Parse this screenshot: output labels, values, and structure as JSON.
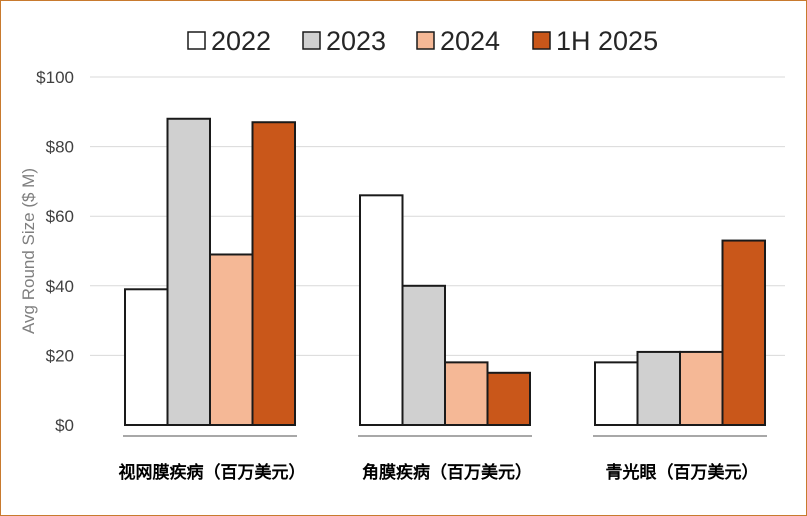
{
  "chart_data": {
    "type": "bar",
    "categories": [
      "视网膜疾病（百万美元）",
      "角膜疾病（百万美元）",
      "青光眼（百万美元）"
    ],
    "series": [
      {
        "name": "2022",
        "values": [
          39,
          66,
          18
        ],
        "color": "#ffffff"
      },
      {
        "name": "2023",
        "values": [
          88,
          40,
          21
        ],
        "color": "#d0d0d0"
      },
      {
        "name": "2024",
        "values": [
          49,
          18,
          21
        ],
        "color": "#f5b896"
      },
      {
        "name": "1H 2025",
        "values": [
          87,
          15,
          53
        ],
        "color": "#c9571a"
      }
    ],
    "ylabel": "Avg Round Size ($ M)",
    "ylim": [
      0,
      100
    ],
    "yticks": [
      0,
      20,
      40,
      60,
      80,
      100
    ],
    "ytick_labels": [
      "$0",
      "$20",
      "$40",
      "$60",
      "$80",
      "$100"
    ],
    "grid": true,
    "legend": "top"
  },
  "colors": {
    "border": "#c87a2e",
    "bar_outline": "#1a1a1a",
    "grid": "#d9d9d9"
  }
}
